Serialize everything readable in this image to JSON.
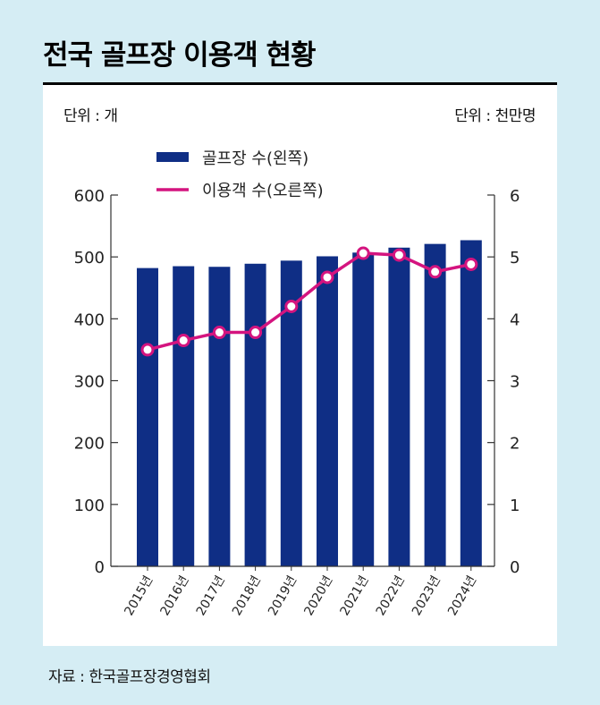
{
  "title": "전국 골프장 이용객 현황",
  "unit_left": "단위 : 개",
  "unit_right": "단위 : 천만명",
  "source": "자료 : 한국골프장경영협회",
  "colors": {
    "bar": "#0f2e85",
    "line": "#d4147f",
    "background": "#d5edf4",
    "panel": "#ffffff"
  },
  "chart_data": {
    "type": "bar+line",
    "categories": [
      "2015년",
      "2016년",
      "2017년",
      "2018년",
      "2019년",
      "2020년",
      "2021년",
      "2022년",
      "2023년",
      "2024년"
    ],
    "series": [
      {
        "name": "골프장 수(왼쪽)",
        "type": "bar",
        "axis": "left",
        "values": [
          482,
          485,
          484,
          489,
          494,
          501,
          507,
          515,
          521,
          527
        ]
      },
      {
        "name": "이용객 수(오른쪽)",
        "type": "line",
        "axis": "right",
        "values": [
          3.5,
          3.65,
          3.78,
          3.78,
          4.2,
          4.67,
          5.06,
          5.03,
          4.76,
          4.88
        ]
      }
    ],
    "y_left": {
      "lim": [
        0,
        600
      ],
      "ticks": [
        0,
        100,
        200,
        300,
        400,
        500,
        600
      ]
    },
    "y_right": {
      "lim": [
        0,
        6
      ],
      "ticks": [
        0,
        1,
        2,
        3,
        4,
        5,
        6
      ]
    },
    "legend": "top-center",
    "grid": false
  }
}
